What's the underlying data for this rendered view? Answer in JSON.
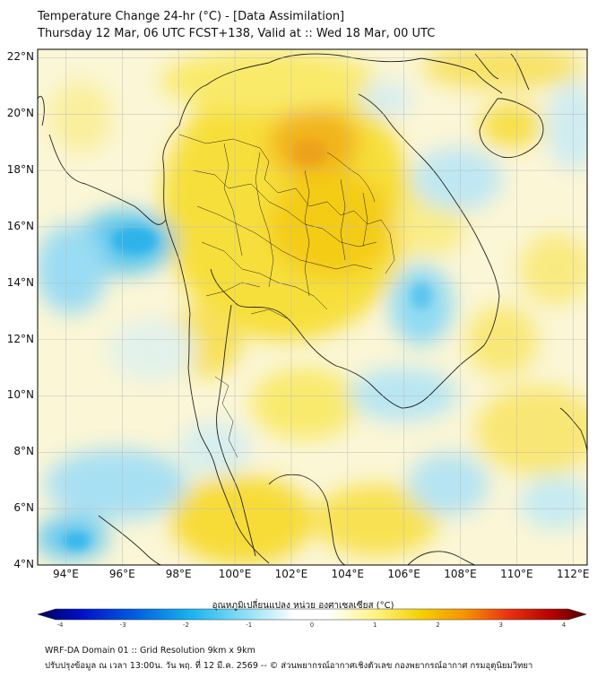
{
  "header": {
    "title_line1": "Temperature Change 24-hr (°C) - [Data Assimilation]",
    "title_line2": "Thursday 12 Mar, 06 UTC FCST+138, Valid at :: Wed 18 Mar, 00 UTC"
  },
  "map": {
    "lon_ticks": [
      {
        "value": 94,
        "label": "94°E"
      },
      {
        "value": 96,
        "label": "96°E"
      },
      {
        "value": 98,
        "label": "98°E"
      },
      {
        "value": 100,
        "label": "100°E"
      },
      {
        "value": 102,
        "label": "102°E"
      },
      {
        "value": 104,
        "label": "104°E"
      },
      {
        "value": 106,
        "label": "106°E"
      },
      {
        "value": 108,
        "label": "108°E"
      },
      {
        "value": 110,
        "label": "110°E"
      },
      {
        "value": 112,
        "label": "112°E"
      }
    ],
    "lat_ticks": [
      {
        "value": 22,
        "label": "22°N"
      },
      {
        "value": 20,
        "label": "20°N"
      },
      {
        "value": 18,
        "label": "18°N"
      },
      {
        "value": 16,
        "label": "16°N"
      },
      {
        "value": 14,
        "label": "14°N"
      },
      {
        "value": 12,
        "label": "12°N"
      },
      {
        "value": 10,
        "label": "10°N"
      },
      {
        "value": 8,
        "label": "8°N"
      },
      {
        "value": 6,
        "label": "6°N"
      },
      {
        "value": 4,
        "label": "4°N"
      }
    ],
    "lon_range": [
      93,
      112.5
    ],
    "lat_range": [
      4,
      22.3
    ],
    "grid": true,
    "colors": {
      "land_border": "#222222",
      "grid": "#bbbbbb",
      "warm": "#f5d400",
      "cool": "#7fd6f2"
    }
  },
  "colorbar": {
    "label": "อุณหภูมิเปลี่ยนแปลง หน่วย องศาเซลเซียส (°C)",
    "ticks": [
      "-4",
      "-3",
      "-2",
      "-1",
      "0",
      "1",
      "2",
      "3",
      "4"
    ],
    "min": -4,
    "max": 4
  },
  "footer": {
    "line1": "WRF-DA Domain 01 :: Grid Resolution 9km x 9km",
    "line2": "ปรับปรุงข้อมูล ณ เวลา 13:00น. วัน พฤ. ที่ 12 มี.ค. 2569 -- © ส่วนพยากรณ์อากาศเชิงตัวเลข กองพยากรณ์อากาศ กรมอุตุนิยมวิทยา"
  }
}
